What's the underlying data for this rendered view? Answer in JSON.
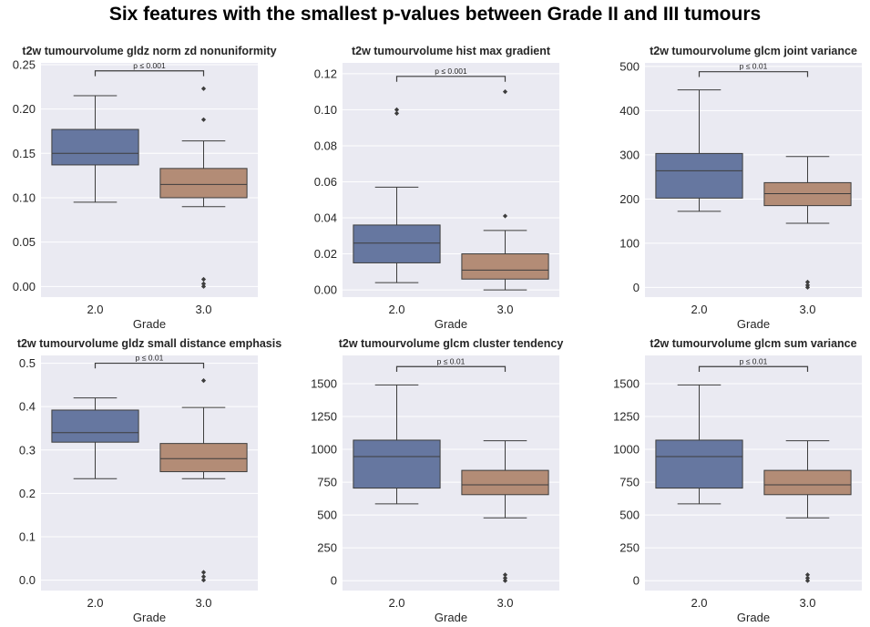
{
  "title": "Six features with the smallest p-values between Grade II and III tumours",
  "colors": {
    "grade2": "#6677a0",
    "grade3": "#b38c76",
    "background": "#eaeaf2",
    "grid": "#ffffff",
    "line": "#3d3d3d"
  },
  "chart_data": [
    {
      "type": "box",
      "title": "t2w tumourvolume gldz norm zd nonuniformity",
      "xlabel": "Grade",
      "categories": [
        "2.0",
        "3.0"
      ],
      "ylim": [
        -0.012,
        0.252
      ],
      "yticks": [
        0.0,
        0.05,
        0.1,
        0.15,
        0.2,
        0.25
      ],
      "yticklabels": [
        "0.00",
        "0.05",
        "0.10",
        "0.15",
        "0.20",
        "0.25"
      ],
      "boxes": [
        {
          "category": "2.0",
          "whisker_low": 0.095,
          "q1": 0.137,
          "median": 0.15,
          "q3": 0.177,
          "whisker_high": 0.215,
          "outliers": []
        },
        {
          "category": "3.0",
          "whisker_low": 0.09,
          "q1": 0.1,
          "median": 0.115,
          "q3": 0.133,
          "whisker_high": 0.164,
          "outliers": [
            0.223,
            0.188,
            0.008,
            0.003,
            0.0
          ]
        }
      ],
      "annotation": {
        "text": "p ≤ 0.001",
        "y": 0.243,
        "tip": 0.237
      }
    },
    {
      "type": "box",
      "title": "t2w tumourvolume hist max gradient",
      "xlabel": "Grade",
      "categories": [
        "2.0",
        "3.0"
      ],
      "ylim": [
        -0.004,
        0.126
      ],
      "yticks": [
        0.0,
        0.02,
        0.04,
        0.06,
        0.08,
        0.1,
        0.12
      ],
      "yticklabels": [
        "0.00",
        "0.02",
        "0.04",
        "0.06",
        "0.08",
        "0.10",
        "0.12"
      ],
      "boxes": [
        {
          "category": "2.0",
          "whisker_low": 0.004,
          "q1": 0.015,
          "median": 0.026,
          "q3": 0.036,
          "whisker_high": 0.057,
          "outliers": [
            0.1,
            0.098
          ]
        },
        {
          "category": "3.0",
          "whisker_low": 0.0,
          "q1": 0.006,
          "median": 0.011,
          "q3": 0.02,
          "whisker_high": 0.033,
          "outliers": [
            0.11,
            0.041
          ]
        }
      ],
      "annotation": {
        "text": "p ≤ 0.001",
        "y": 0.1185,
        "tip": 0.1155
      }
    },
    {
      "type": "box",
      "title": "t2w tumourvolume glcm joint variance",
      "xlabel": "Grade",
      "categories": [
        "2.0",
        "3.0"
      ],
      "ylim": [
        -22,
        508
      ],
      "yticks": [
        0,
        100,
        200,
        300,
        400,
        500
      ],
      "yticklabels": [
        "0",
        "100",
        "200",
        "300",
        "400",
        "500"
      ],
      "boxes": [
        {
          "category": "2.0",
          "whisker_low": 172,
          "q1": 202,
          "median": 264,
          "q3": 303,
          "whisker_high": 447,
          "outliers": []
        },
        {
          "category": "3.0",
          "whisker_low": 145,
          "q1": 185,
          "median": 212,
          "q3": 237,
          "whisker_high": 296,
          "outliers": [
            12,
            5,
            0
          ]
        }
      ],
      "annotation": {
        "text": "p ≤ 0.01",
        "y": 488,
        "tip": 476
      }
    },
    {
      "type": "box",
      "title": "t2w tumourvolume gldz small distance emphasis",
      "xlabel": "Grade",
      "categories": [
        "2.0",
        "3.0"
      ],
      "ylim": [
        -0.024,
        0.518
      ],
      "yticks": [
        0.0,
        0.1,
        0.2,
        0.3,
        0.4,
        0.5
      ],
      "yticklabels": [
        "0.0",
        "0.1",
        "0.2",
        "0.3",
        "0.4",
        "0.5"
      ],
      "boxes": [
        {
          "category": "2.0",
          "whisker_low": 0.234,
          "q1": 0.318,
          "median": 0.34,
          "q3": 0.392,
          "whisker_high": 0.42,
          "outliers": []
        },
        {
          "category": "3.0",
          "whisker_low": 0.234,
          "q1": 0.25,
          "median": 0.28,
          "q3": 0.315,
          "whisker_high": 0.398,
          "outliers": [
            0.46,
            0.018,
            0.008,
            0.0
          ]
        }
      ],
      "annotation": {
        "text": "p ≤ 0.01",
        "y": 0.5,
        "tip": 0.488
      }
    },
    {
      "type": "box",
      "title": "t2w tumourvolume glcm cluster tendency",
      "xlabel": "Grade",
      "categories": [
        "2.0",
        "3.0"
      ],
      "ylim": [
        -75,
        1715
      ],
      "yticks": [
        0,
        250,
        500,
        750,
        1000,
        1250,
        1500
      ],
      "yticklabels": [
        "0",
        "250",
        "500",
        "750",
        "1000",
        "1250",
        "1500"
      ],
      "boxes": [
        {
          "category": "2.0",
          "whisker_low": 585,
          "q1": 705,
          "median": 945,
          "q3": 1070,
          "whisker_high": 1490,
          "outliers": []
        },
        {
          "category": "3.0",
          "whisker_low": 478,
          "q1": 655,
          "median": 730,
          "q3": 840,
          "whisker_high": 1065,
          "outliers": [
            45,
            20,
            0
          ]
        }
      ],
      "annotation": {
        "text": "p ≤ 0.01",
        "y": 1630,
        "tip": 1590
      }
    },
    {
      "type": "box",
      "title": "t2w tumourvolume glcm sum variance",
      "xlabel": "Grade",
      "categories": [
        "2.0",
        "3.0"
      ],
      "ylim": [
        -75,
        1715
      ],
      "yticks": [
        0,
        250,
        500,
        750,
        1000,
        1250,
        1500
      ],
      "yticklabels": [
        "0",
        "250",
        "500",
        "750",
        "1000",
        "1250",
        "1500"
      ],
      "boxes": [
        {
          "category": "2.0",
          "whisker_low": 585,
          "q1": 705,
          "median": 945,
          "q3": 1070,
          "whisker_high": 1490,
          "outliers": []
        },
        {
          "category": "3.0",
          "whisker_low": 478,
          "q1": 655,
          "median": 730,
          "q3": 840,
          "whisker_high": 1065,
          "outliers": [
            45,
            20,
            0
          ]
        }
      ],
      "annotation": {
        "text": "p ≤ 0.01",
        "y": 1630,
        "tip": 1590
      }
    }
  ]
}
